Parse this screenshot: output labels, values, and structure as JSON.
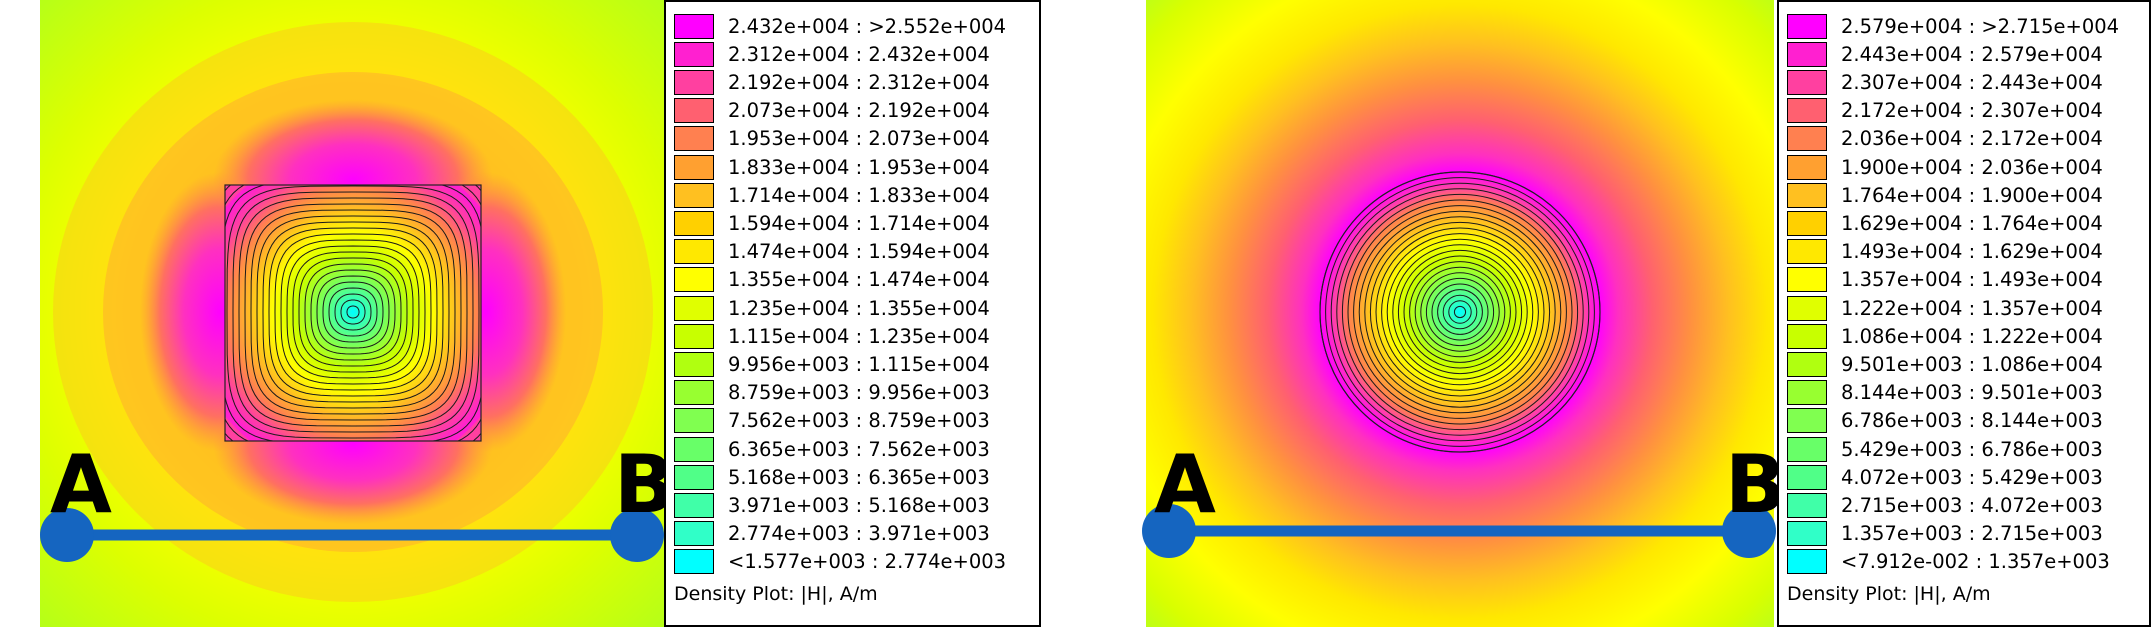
{
  "colors": [
    "#ff00ff",
    "#ff20d0",
    "#ff40a0",
    "#ff6070",
    "#ff8050",
    "#ffa030",
    "#ffc020",
    "#ffd000",
    "#ffe800",
    "#ffff00",
    "#e0ff00",
    "#c8ff00",
    "#b0ff10",
    "#98ff30",
    "#80ff50",
    "#68ff68",
    "#50ff88",
    "#40ffa8",
    "#30ffc8",
    "#00ffff"
  ],
  "panels": [
    {
      "shape": "square",
      "marker_a": "A",
      "marker_b": "B",
      "legend_caption": "Density Plot: |H|, A/m",
      "legend_ranges": [
        "2.432e+004 : >2.552e+004",
        "2.312e+004 : 2.432e+004",
        "2.192e+004 : 2.312e+004",
        "2.073e+004 : 2.192e+004",
        "1.953e+004 : 2.073e+004",
        "1.833e+004 : 1.953e+004",
        "1.714e+004 : 1.833e+004",
        "1.594e+004 : 1.714e+004",
        "1.474e+004 : 1.594e+004",
        "1.355e+004 : 1.474e+004",
        "1.235e+004 : 1.355e+004",
        "1.115e+004 : 1.235e+004",
        "9.956e+003 : 1.115e+004",
        "8.759e+003 : 9.956e+003",
        "7.562e+003 : 8.759e+003",
        "6.365e+003 : 7.562e+003",
        "5.168e+003 : 6.365e+003",
        "3.971e+003 : 5.168e+003",
        "2.774e+003 : 3.971e+003",
        "<1.577e+003 : 2.774e+003"
      ]
    },
    {
      "shape": "circle",
      "marker_a": "A",
      "marker_b": "B",
      "legend_caption": "Density Plot: |H|, A/m",
      "legend_ranges": [
        "2.579e+004 : >2.715e+004",
        "2.443e+004 : 2.579e+004",
        "2.307e+004 : 2.443e+004",
        "2.172e+004 : 2.307e+004",
        "2.036e+004 : 2.172e+004",
        "1.900e+004 : 2.036e+004",
        "1.764e+004 : 1.900e+004",
        "1.629e+004 : 1.764e+004",
        "1.493e+004 : 1.629e+004",
        "1.357e+004 : 1.493e+004",
        "1.222e+004 : 1.357e+004",
        "1.086e+004 : 1.222e+004",
        "9.501e+003 : 1.086e+004",
        "8.144e+003 : 9.501e+003",
        "6.786e+003 : 8.144e+003",
        "5.429e+003 : 6.786e+003",
        "4.072e+003 : 5.429e+003",
        "2.715e+003 : 4.072e+003",
        "1.357e+003 : 2.715e+003",
        "<7.912e-002 : 1.357e+003"
      ]
    }
  ]
}
